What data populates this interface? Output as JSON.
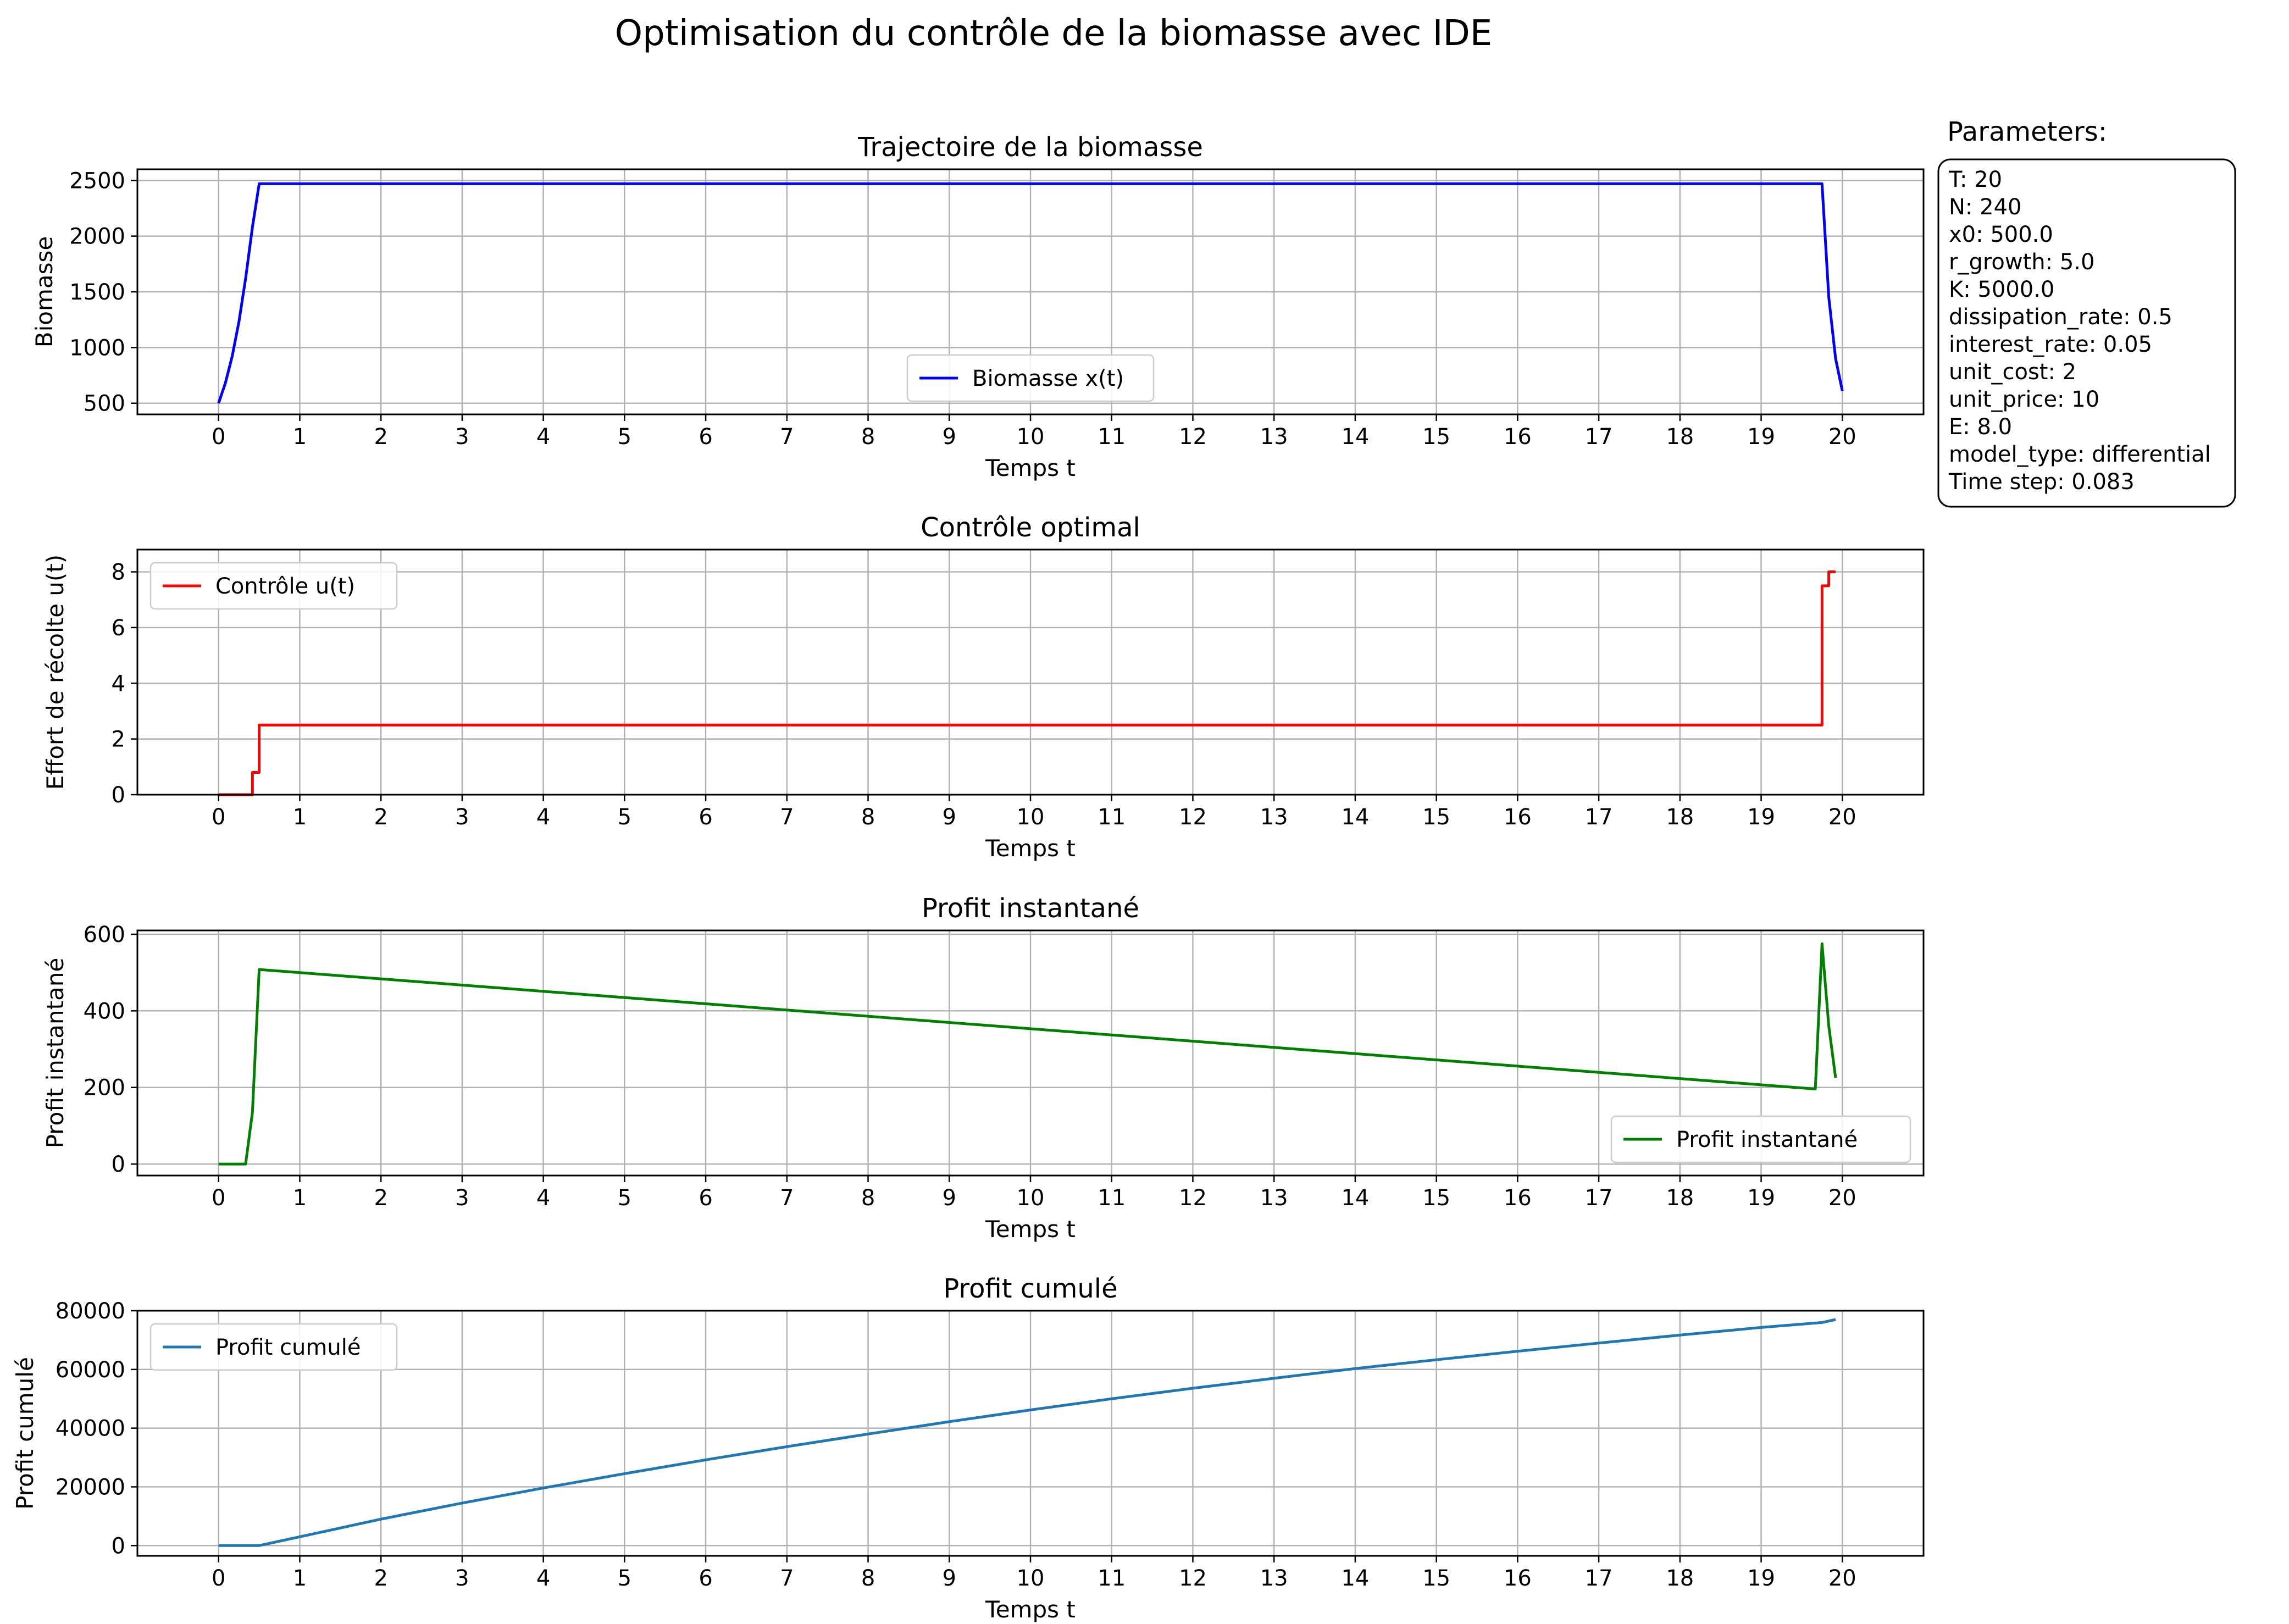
{
  "figure": {
    "title": "Optimisation du contrôle de la biomasse avec IDE"
  },
  "parameters": {
    "title": "Parameters:",
    "lines": [
      "T: 20",
      "N: 240",
      "x0: 500.0",
      "r_growth: 5.0",
      "K: 5000.0",
      "dissipation_rate: 0.5",
      "interest_rate: 0.05",
      "unit_cost: 2",
      "unit_price: 10",
      "E: 8.0",
      "model_type: differential",
      "Time step: 0.083"
    ]
  },
  "chart_data": [
    {
      "type": "line",
      "title": "Trajectoire de la biomasse",
      "xlabel": "Temps t",
      "ylabel": "Biomasse",
      "xlim": [
        -1,
        21
      ],
      "ylim": [
        400,
        2600
      ],
      "xticks": [
        0,
        1,
        2,
        3,
        4,
        5,
        6,
        7,
        8,
        9,
        10,
        11,
        12,
        13,
        14,
        15,
        16,
        17,
        18,
        19,
        20
      ],
      "yticks": [
        500,
        1000,
        1500,
        2000,
        2500
      ],
      "grid": true,
      "legend_position": "lower center",
      "series": [
        {
          "name": "Biomasse x(t)",
          "color": "#0000ff",
          "x": [
            0,
            0.083,
            0.167,
            0.25,
            0.333,
            0.417,
            0.5,
            19.75,
            19.833,
            19.917,
            20
          ],
          "y": [
            500,
            680,
            920,
            1230,
            1620,
            2080,
            2470,
            2470,
            1450,
            900,
            610
          ]
        }
      ]
    },
    {
      "type": "line",
      "title": "Contrôle optimal",
      "xlabel": "Temps t",
      "ylabel": "Effort de récolte u(t)",
      "xlim": [
        -1,
        21
      ],
      "ylim": [
        0,
        8.8
      ],
      "xticks": [
        0,
        1,
        2,
        3,
        4,
        5,
        6,
        7,
        8,
        9,
        10,
        11,
        12,
        13,
        14,
        15,
        16,
        17,
        18,
        19,
        20
      ],
      "yticks": [
        0,
        2,
        4,
        6,
        8
      ],
      "grid": true,
      "legend_position": "upper left",
      "series": [
        {
          "name": "Contrôle u(t)",
          "color": "#ff0000",
          "step": true,
          "x": [
            0,
            0.083,
            0.167,
            0.25,
            0.333,
            0.417,
            0.5,
            19.75,
            19.833,
            19.917
          ],
          "y": [
            0,
            0,
            0,
            0,
            0,
            0.8,
            2.5,
            7.5,
            8,
            8
          ]
        }
      ]
    },
    {
      "type": "line",
      "title": "Profit instantané",
      "xlabel": "Temps t",
      "ylabel": "Profit instantané",
      "xlim": [
        -1,
        21
      ],
      "ylim": [
        -30,
        610
      ],
      "xticks": [
        0,
        1,
        2,
        3,
        4,
        5,
        6,
        7,
        8,
        9,
        10,
        11,
        12,
        13,
        14,
        15,
        16,
        17,
        18,
        19,
        20
      ],
      "yticks": [
        0,
        200,
        400,
        600
      ],
      "grid": true,
      "legend_position": "lower right",
      "series": [
        {
          "name": "Profit instantané",
          "color": "#008000",
          "x": [
            0,
            0.333,
            0.417,
            0.5,
            19.667,
            19.75,
            19.833,
            19.917
          ],
          "y": [
            0,
            0,
            135,
            508,
            196,
            575,
            360,
            225
          ]
        }
      ]
    },
    {
      "type": "line",
      "title": "Profit cumulé",
      "xlabel": "Temps t",
      "ylabel": "Profit cumulé",
      "xlim": [
        -1,
        21
      ],
      "ylim": [
        -3500,
        80000
      ],
      "xticks": [
        0,
        1,
        2,
        3,
        4,
        5,
        6,
        7,
        8,
        9,
        10,
        11,
        12,
        13,
        14,
        15,
        16,
        17,
        18,
        19,
        20
      ],
      "yticks": [
        0,
        20000,
        40000,
        60000,
        80000
      ],
      "grid": true,
      "legend_position": "upper left",
      "series": [
        {
          "name": "Profit cumulé",
          "color": "#1f77b4",
          "x": [
            0,
            0.5,
            1,
            2,
            3,
            4,
            5,
            6,
            7,
            8,
            9,
            10,
            11,
            12,
            13,
            14,
            15,
            16,
            17,
            18,
            19,
            19.75,
            19.917
          ],
          "y": [
            0,
            0,
            3000,
            9000,
            14500,
            19600,
            24500,
            29200,
            33700,
            38000,
            42200,
            46200,
            50000,
            53600,
            57000,
            60300,
            63300,
            66200,
            69000,
            71700,
            74300,
            76000,
            77000
          ]
        }
      ]
    }
  ]
}
